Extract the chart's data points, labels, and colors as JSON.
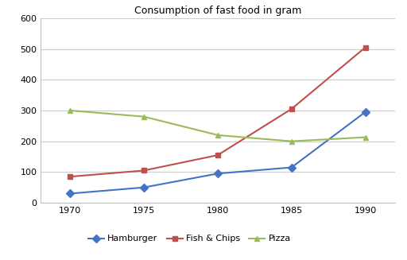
{
  "title": "Consumption of fast food in gram",
  "years": [
    1970,
    1975,
    1980,
    1985,
    1990
  ],
  "series": [
    {
      "label": "Hamburger",
      "values": [
        30,
        50,
        95,
        115,
        295
      ],
      "color": "#4472C4",
      "marker": "D",
      "markercolor": "#4472C4"
    },
    {
      "label": "Fish & Chips",
      "values": [
        85,
        105,
        155,
        305,
        505
      ],
      "color": "#C0504D",
      "marker": "s",
      "markercolor": "#C0504D"
    },
    {
      "label": "Pizza",
      "values": [
        300,
        280,
        220,
        200,
        213
      ],
      "color": "#9BBB59",
      "marker": "^",
      "markercolor": "#9BBB59"
    }
  ],
  "ylim": [
    0,
    600
  ],
  "yticks": [
    0,
    100,
    200,
    300,
    400,
    500,
    600
  ],
  "xticks": [
    1970,
    1975,
    1980,
    1985,
    1990
  ],
  "background_color": "#FFFFFF",
  "plot_bg_color": "#FFFFFF",
  "grid_color": "#CCCCCC",
  "title_fontsize": 9,
  "tick_fontsize": 8,
  "legend_fontsize": 8,
  "linewidth": 1.5,
  "markersize": 5,
  "border_color": "#C0C0C0"
}
